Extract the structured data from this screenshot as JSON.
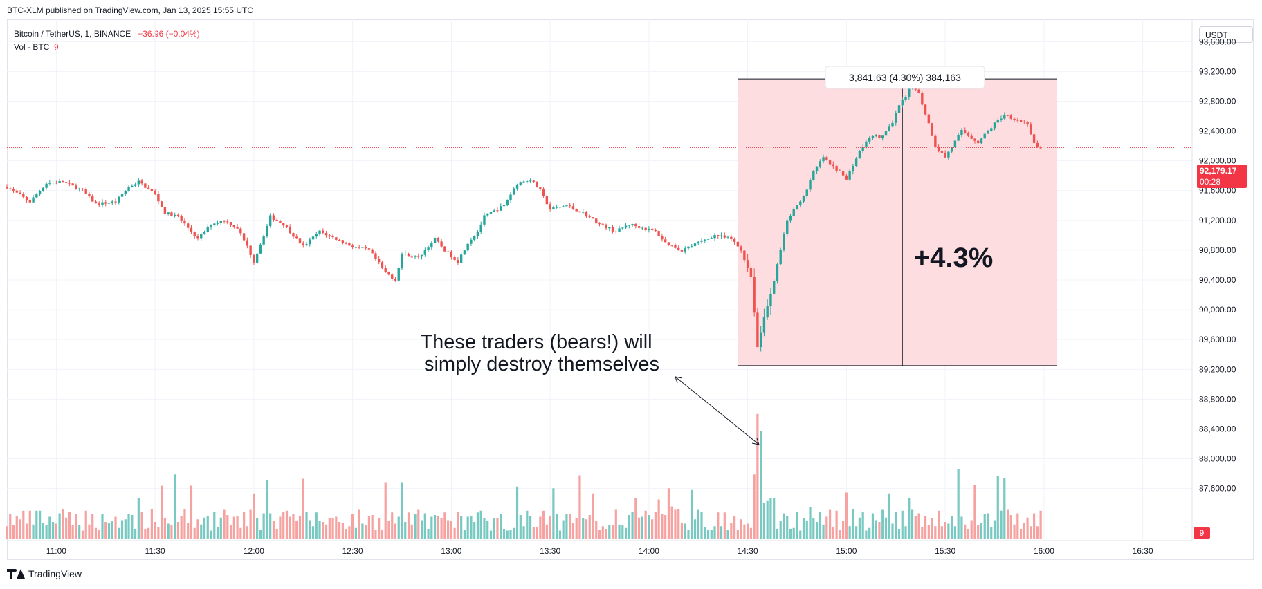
{
  "header": {
    "published": "BTC-XLM published on TradingView.com, Jan 13, 2025 15:55 UTC"
  },
  "legend": {
    "symbol": "Bitcoin / TetherUS, 1, BINANCE",
    "change": "−36.96 (−0.04%)",
    "vol_label": "Vol · BTC",
    "vol_value": "9"
  },
  "currency_button": "USDT",
  "footer": {
    "brand": "TradingView"
  },
  "colors": {
    "up": "#26a69a",
    "down": "#ef5350",
    "vol_up": "#77c9c1",
    "vol_down": "#f5a2a0",
    "range_fill": "#fddde0",
    "price_tag": "#f23645"
  },
  "chart_data": {
    "type": "candlestick",
    "symbol": "Bitcoin / TetherUS",
    "interval": "1",
    "exchange": "BINANCE",
    "ylim": [
      86900,
      93900
    ],
    "y_ticks": [
      "93,600.00",
      "93,200.00",
      "92,800.00",
      "92,400.00",
      "92,000.00",
      "91,600.00",
      "91,200.00",
      "90,800.00",
      "90,400.00",
      "90,000.00",
      "89,600.00",
      "89,200.00",
      "88,800.00",
      "88,400.00",
      "88,000.00",
      "87,600.00"
    ],
    "x_ticks": [
      "11:00",
      "11:30",
      "12:00",
      "12:30",
      "13:00",
      "13:30",
      "14:00",
      "14:30",
      "15:00",
      "15:30",
      "16:00",
      "16:30"
    ],
    "x_start": "10:45",
    "x_end": "16:45",
    "last_price": "92,179.17",
    "countdown": "00:28",
    "volume_last": "9",
    "close_path": [
      [
        "10:45",
        91650
      ],
      [
        "10:52",
        91450
      ],
      [
        "10:57",
        91700
      ],
      [
        "11:02",
        91720
      ],
      [
        "11:08",
        91600
      ],
      [
        "11:12",
        91420
      ],
      [
        "11:18",
        91450
      ],
      [
        "11:22",
        91650
      ],
      [
        "11:25",
        91720
      ],
      [
        "11:30",
        91550
      ],
      [
        "11:33",
        91300
      ],
      [
        "11:37",
        91250
      ],
      [
        "11:40",
        91100
      ],
      [
        "11:43",
        90950
      ],
      [
        "11:47",
        91150
      ],
      [
        "11:51",
        91200
      ],
      [
        "11:55",
        91100
      ],
      [
        "11:58",
        90850
      ],
      [
        "12:00",
        90650
      ],
      [
        "12:03",
        91000
      ],
      [
        "12:05",
        91250
      ],
      [
        "12:09",
        91150
      ],
      [
        "12:15",
        90850
      ],
      [
        "12:20",
        91050
      ],
      [
        "12:25",
        90950
      ],
      [
        "12:30",
        90850
      ],
      [
        "12:35",
        90800
      ],
      [
        "12:40",
        90500
      ],
      [
        "12:43",
        90400
      ],
      [
        "12:45",
        90750
      ],
      [
        "12:50",
        90700
      ],
      [
        "12:55",
        90950
      ],
      [
        "12:58",
        90800
      ],
      [
        "13:02",
        90650
      ],
      [
        "13:05",
        90900
      ],
      [
        "13:08",
        91050
      ],
      [
        "13:10",
        91250
      ],
      [
        "13:12",
        91300
      ],
      [
        "13:16",
        91400
      ],
      [
        "13:20",
        91700
      ],
      [
        "13:24",
        91750
      ],
      [
        "13:27",
        91600
      ],
      [
        "13:30",
        91350
      ],
      [
        "13:35",
        91400
      ],
      [
        "13:40",
        91300
      ],
      [
        "13:45",
        91150
      ],
      [
        "13:50",
        91050
      ],
      [
        "13:54",
        91150
      ],
      [
        "14:02",
        91050
      ],
      [
        "14:05",
        90900
      ],
      [
        "14:10",
        90800
      ],
      [
        "14:15",
        90900
      ],
      [
        "14:20",
        91000
      ],
      [
        "14:25",
        90950
      ],
      [
        "14:28",
        90800
      ],
      [
        "14:31",
        90450
      ],
      [
        "14:33",
        89500
      ],
      [
        "14:35",
        89900
      ],
      [
        "14:37",
        90200
      ],
      [
        "14:40",
        90800
      ],
      [
        "14:42",
        91200
      ],
      [
        "14:45",
        91400
      ],
      [
        "14:48",
        91600
      ],
      [
        "14:50",
        91850
      ],
      [
        "14:53",
        92050
      ],
      [
        "14:55",
        91950
      ],
      [
        "14:58",
        91850
      ],
      [
        "15:00",
        91750
      ],
      [
        "15:02",
        91950
      ],
      [
        "15:05",
        92200
      ],
      [
        "15:08",
        92350
      ],
      [
        "15:10",
        92300
      ],
      [
        "15:14",
        92500
      ],
      [
        "15:16",
        92750
      ],
      [
        "15:18",
        92850
      ],
      [
        "15:20",
        93050
      ],
      [
        "15:22",
        92900
      ],
      [
        "15:25",
        92500
      ],
      [
        "15:27",
        92200
      ],
      [
        "15:30",
        92050
      ],
      [
        "15:35",
        92400
      ],
      [
        "15:40",
        92250
      ],
      [
        "15:45",
        92500
      ],
      [
        "15:48",
        92620
      ],
      [
        "15:52",
        92550
      ],
      [
        "15:55",
        92500
      ],
      [
        "15:57",
        92220
      ],
      [
        "15:59",
        92150
      ]
    ],
    "candles": [],
    "volumes": []
  },
  "range_tool": {
    "label": "3,841.63 (4.30%) 384,163",
    "low": 89250,
    "high": 93100,
    "from": "14:27",
    "to": "16:04",
    "arrow_time": "15:17"
  },
  "annotations": {
    "percent_text": "+4.3%",
    "note_line1": "These traders (bears!) will",
    "note_line2": "simply destroy themselves"
  }
}
